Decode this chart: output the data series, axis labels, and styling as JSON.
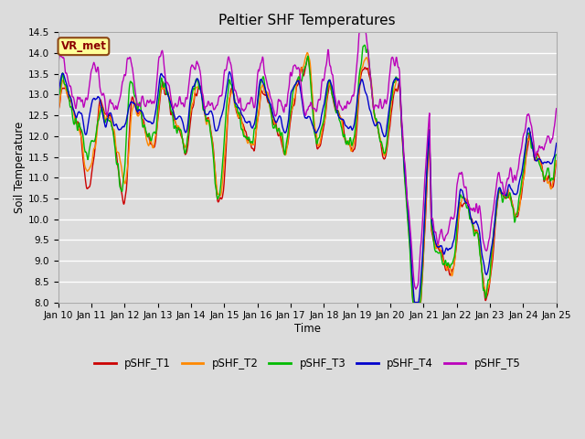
{
  "title": "Peltier SHF Temperatures",
  "xlabel": "Time",
  "ylabel": "Soil Temperature",
  "ylim": [
    8.0,
    14.5
  ],
  "yticks": [
    8.0,
    8.5,
    9.0,
    9.5,
    10.0,
    10.5,
    11.0,
    11.5,
    12.0,
    12.5,
    13.0,
    13.5,
    14.0,
    14.5
  ],
  "xtick_labels": [
    "Jan 10",
    "Jan 11",
    "Jan 12",
    "Jan 13",
    "Jan 14",
    "Jan 15",
    "Jan 16",
    "Jan 17",
    "Jan 18",
    "Jan 19",
    "Jan 20",
    "Jan 21",
    "Jan 22",
    "Jan 23",
    "Jan 24",
    "Jan 25"
  ],
  "legend_labels": [
    "pSHF_T1",
    "pSHF_T2",
    "pSHF_T3",
    "pSHF_T4",
    "pSHF_T5"
  ],
  "series_colors": [
    "#cc0000",
    "#ff8800",
    "#00bb00",
    "#0000cc",
    "#bb00bb"
  ],
  "annotation_text": "VR_met",
  "annotation_box_color": "#ffff99",
  "annotation_border_color": "#8B4513",
  "annotation_text_color": "#8B0000",
  "background_color": "#dcdcdc",
  "grid_color": "#ffffff"
}
